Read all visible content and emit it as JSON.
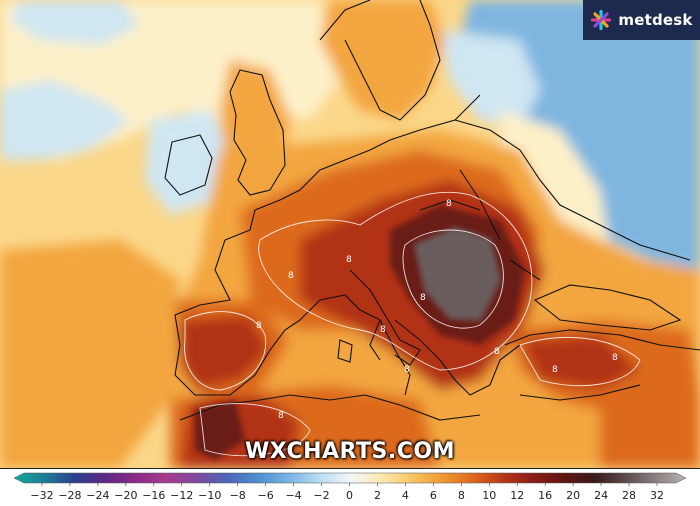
{
  "brand": {
    "name": "metdesk",
    "icon": "metdesk-logo-icon",
    "colors": [
      "#2ec3e6",
      "#e23d8a",
      "#f2a52a",
      "#8a4fd6"
    ]
  },
  "watermark": "WXCHARTS.COM",
  "colorbar": {
    "ticks": [
      "-32",
      "-28",
      "-24",
      "-20",
      "-16",
      "-12",
      "-10",
      "-8",
      "-6",
      "-4",
      "-2",
      "0",
      "2",
      "4",
      "6",
      "8",
      "10",
      "12",
      "16",
      "20",
      "24",
      "28",
      "32"
    ],
    "stops": [
      {
        "value": -32,
        "color": "#14a99a"
      },
      {
        "value": -28,
        "color": "#1b7e96"
      },
      {
        "value": -24,
        "color": "#2c3f8f"
      },
      {
        "value": -20,
        "color": "#5c2a86"
      },
      {
        "value": -16,
        "color": "#8a2a86"
      },
      {
        "value": -12,
        "color": "#a73c8d"
      },
      {
        "value": -10,
        "color": "#7b4aa0"
      },
      {
        "value": -8,
        "color": "#4d66b8"
      },
      {
        "value": -6,
        "color": "#4f8fd0"
      },
      {
        "value": -4,
        "color": "#79b4e3"
      },
      {
        "value": -2,
        "color": "#b8dcf1"
      },
      {
        "value": 0,
        "color": "#f3f6f7"
      },
      {
        "value": 2,
        "color": "#fbeab2"
      },
      {
        "value": 4,
        "color": "#f7c765"
      },
      {
        "value": 6,
        "color": "#f09a32"
      },
      {
        "value": 8,
        "color": "#de6a1f"
      },
      {
        "value": 10,
        "color": "#b8381a"
      },
      {
        "value": 12,
        "color": "#8a1c18"
      },
      {
        "value": 16,
        "color": "#5e1512"
      },
      {
        "value": 20,
        "color": "#3a1a1a"
      },
      {
        "value": 24,
        "color": "#5a4a4a"
      },
      {
        "value": 28,
        "color": "#8a8080"
      },
      {
        "value": 32,
        "color": "#b8b0b0"
      }
    ]
  },
  "map": {
    "colors": {
      "ocean_warm": "#fbd78a",
      "ocean_pale": "#fdf0c8",
      "cool": "#cfe6f3",
      "cold": "#7fb6e0",
      "warm": "#f3a640",
      "hot": "#dd6b1e",
      "very_hot": "#b23218",
      "extreme": "#6a1c16",
      "peak": "#6b5d5d",
      "border": "#111111",
      "contour": "#ffffff"
    },
    "contour_labels": [
      "8",
      "8",
      "8",
      "8",
      "8",
      "8",
      "8",
      "8",
      "8",
      "8",
      "8"
    ]
  }
}
